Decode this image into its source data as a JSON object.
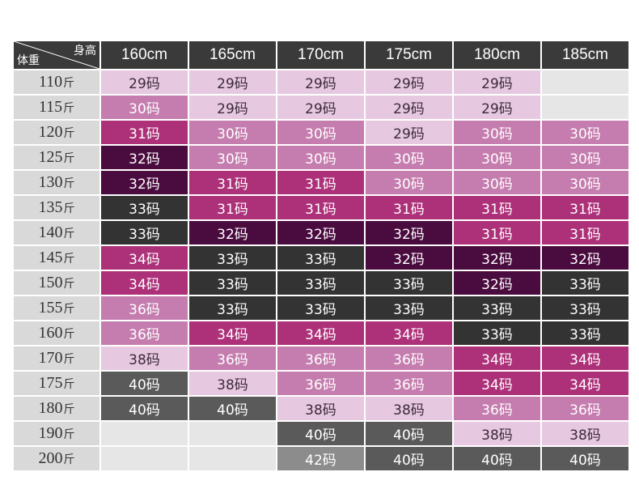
{
  "table": {
    "corner": {
      "height_label": "身高",
      "weight_label": "体重"
    },
    "columns": [
      "160cm",
      "165cm",
      "170cm",
      "175cm",
      "180cm",
      "185cm"
    ],
    "unit": "斤",
    "rows": [
      {
        "weight": "110",
        "sizes": [
          "29码",
          "29码",
          "29码",
          "29码",
          "29码",
          ""
        ]
      },
      {
        "weight": "115",
        "sizes": [
          "30码",
          "29码",
          "29码",
          "29码",
          "29码",
          ""
        ]
      },
      {
        "weight": "120",
        "sizes": [
          "31码",
          "30码",
          "30码",
          "29码",
          "30码",
          "30码"
        ]
      },
      {
        "weight": "125",
        "sizes": [
          "32码",
          "30码",
          "30码",
          "30码",
          "30码",
          "30码"
        ]
      },
      {
        "weight": "130",
        "sizes": [
          "32码",
          "31码",
          "31码",
          "30码",
          "30码",
          "30码"
        ]
      },
      {
        "weight": "135",
        "sizes": [
          "33码",
          "31码",
          "31码",
          "31码",
          "31码",
          "31码"
        ]
      },
      {
        "weight": "140",
        "sizes": [
          "33码",
          "32码",
          "32码",
          "32码",
          "31码",
          "31码"
        ]
      },
      {
        "weight": "145",
        "sizes": [
          "34码",
          "33码",
          "33码",
          "32码",
          "32码",
          "32码"
        ]
      },
      {
        "weight": "150",
        "sizes": [
          "34码",
          "33码",
          "33码",
          "33码",
          "32码",
          "33码"
        ]
      },
      {
        "weight": "155",
        "sizes": [
          "36码",
          "33码",
          "33码",
          "33码",
          "33码",
          "33码"
        ]
      },
      {
        "weight": "160",
        "sizes": [
          "36码",
          "34码",
          "34码",
          "34码",
          "33码",
          "33码"
        ]
      },
      {
        "weight": "170",
        "sizes": [
          "38码",
          "36码",
          "36码",
          "36码",
          "34码",
          "34码"
        ]
      },
      {
        "weight": "175",
        "sizes": [
          "40码",
          "38码",
          "36码",
          "36码",
          "34码",
          "34码"
        ]
      },
      {
        "weight": "180",
        "sizes": [
          "40码",
          "40码",
          "38码",
          "38码",
          "36码",
          "36码"
        ]
      },
      {
        "weight": "190",
        "sizes": [
          "",
          "",
          "40码",
          "40码",
          "38码",
          "38码"
        ]
      },
      {
        "weight": "200",
        "sizes": [
          "",
          "",
          "42码",
          "40码",
          "40码",
          "40码"
        ]
      }
    ],
    "colors": {
      "29码": "#e7c8e1",
      "30码": "#c57cae",
      "31码": "#ad3179",
      "32码": "#4a0b3f",
      "33码": "#333333",
      "34码": "#ad3179",
      "36码": "#c57cae",
      "38码": "#e7c8e1",
      "40码": "#5a5a5a",
      "42码": "#8c8c8c",
      "empty": "#e6e6e6",
      "header": "#3a3a3a",
      "row_header": "#d9d9d9"
    }
  }
}
